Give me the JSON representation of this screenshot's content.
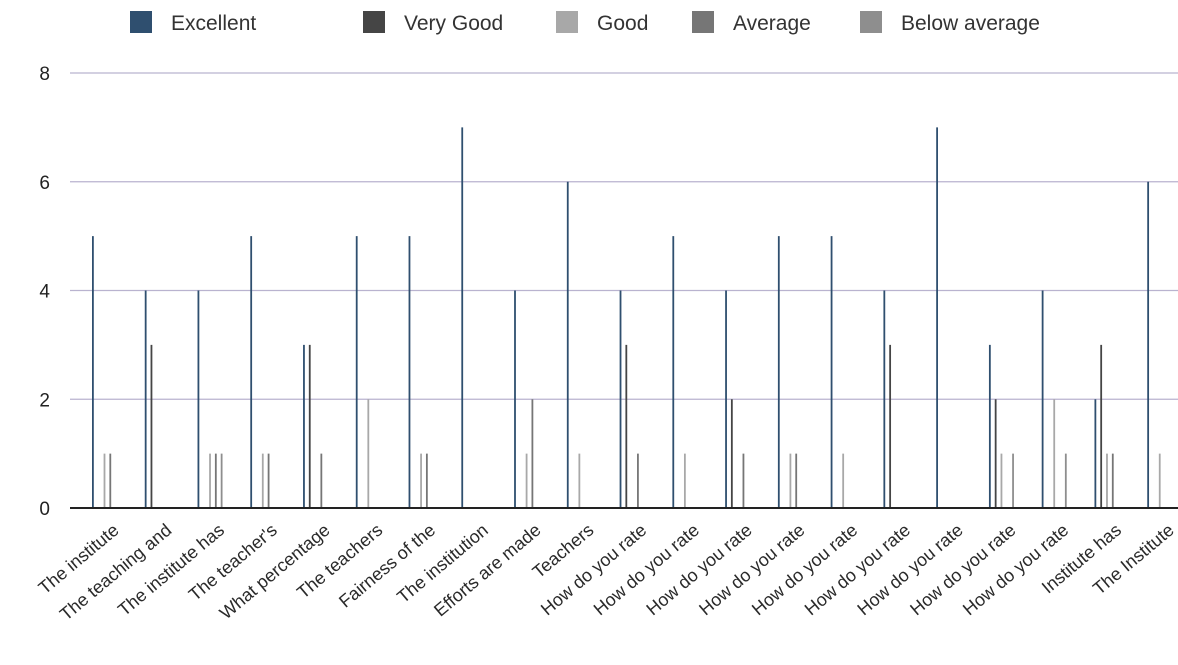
{
  "chart_data": {
    "type": "bar",
    "title": "",
    "xlabel": "",
    "ylabel": "",
    "ylim": [
      0,
      8
    ],
    "yticks": [
      0,
      2,
      4,
      6,
      8
    ],
    "grid": true,
    "legend_position": "top",
    "categories": [
      "The institute",
      "The teaching and",
      "The institute has",
      "The teacher's",
      "What percentage",
      "The teachers",
      "Fairness of the",
      "The institution",
      "Efforts are made",
      "Teachers",
      "How do you rate",
      "How do you rate",
      "How do you rate",
      "How do you rate",
      "How do you rate",
      "How do you rate",
      "How do you rate",
      "How do you rate",
      "How do you rate",
      "Institute has",
      "The Institute"
    ],
    "series": [
      {
        "name": "Excellent",
        "color": "#2f4f6f",
        "values": [
          5,
          4,
          4,
          5,
          3,
          5,
          5,
          7,
          4,
          6,
          4,
          5,
          4,
          5,
          5,
          4,
          7,
          3,
          4,
          2,
          6
        ]
      },
      {
        "name": "Very Good",
        "color": "#454545",
        "values": [
          0,
          3,
          0,
          0,
          3,
          0,
          0,
          0,
          0,
          0,
          3,
          0,
          2,
          0,
          0,
          3,
          0,
          2,
          0,
          3,
          0
        ]
      },
      {
        "name": "Good",
        "color": "#a8a8a8",
        "values": [
          1,
          0,
          1,
          1,
          0,
          2,
          1,
          0,
          1,
          1,
          0,
          1,
          0,
          1,
          1,
          0,
          0,
          1,
          2,
          1,
          1
        ]
      },
      {
        "name": "Average",
        "color": "#767676",
        "values": [
          1,
          0,
          1,
          1,
          1,
          0,
          1,
          0,
          2,
          0,
          1,
          0,
          1,
          1,
          0,
          0,
          0,
          0,
          0,
          1,
          0
        ]
      },
      {
        "name": "Below average",
        "color": "#8e8e8e",
        "values": [
          0,
          0,
          1,
          0,
          0,
          0,
          0,
          0,
          0,
          0,
          0,
          0,
          0,
          0,
          0,
          0,
          0,
          1,
          1,
          0,
          0
        ]
      }
    ]
  }
}
